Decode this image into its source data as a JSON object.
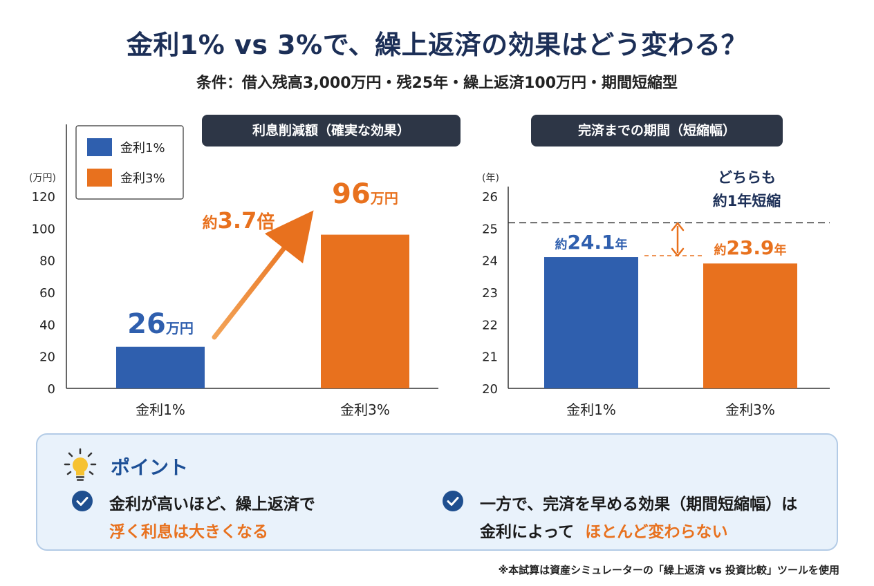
{
  "title": "金利1% vs 3%で、繰上返済の効果はどう変わる？",
  "subtitle": "条件：借入残高3,000万円・残25年・繰上返済100万円・期間短縮型",
  "colors": {
    "rate1": "#2f5fae",
    "rate3": "#e8711e",
    "header_bg": "#2d3646"
  },
  "chart_data": [
    {
      "type": "bar",
      "title": "利息削減額（確実な効果）",
      "categories": [
        "金利1%",
        "金利3%"
      ],
      "values": [
        26,
        96
      ],
      "ylabel": "(万円)",
      "ylim": [
        0,
        120
      ],
      "yticks": [
        "0",
        "20",
        "40",
        "60",
        "80",
        "100",
        "120"
      ],
      "legend": {
        "placement": "top-left",
        "entries": [
          "金利1%",
          "金利3%"
        ]
      },
      "data_labels": [
        {
          "value": "26",
          "unit": "万円"
        },
        {
          "value": "96",
          "unit": "万円"
        }
      ],
      "annotation": {
        "prefix": "約",
        "value": "3.7",
        "suffix": "倍"
      }
    },
    {
      "type": "bar",
      "title": "完済までの期間（短縮幅）",
      "categories": [
        "金利1%",
        "金利3%"
      ],
      "values": [
        24.1,
        23.9
      ],
      "reference_line": 25,
      "ylabel": "(年)",
      "ylim": [
        20,
        26
      ],
      "yticks": [
        "20",
        "21",
        "22",
        "23",
        "24",
        "25",
        "26"
      ],
      "data_labels": [
        {
          "prefix": "約",
          "value": "24.1",
          "unit": "年"
        },
        {
          "prefix": "約",
          "value": "23.9",
          "unit": "年"
        }
      ],
      "annotation": {
        "line1": "どちらも",
        "line2": "約1年短縮"
      }
    }
  ],
  "points": {
    "title": "ポイント",
    "left": {
      "line1": "金利が高いほど、繰上返済で",
      "line2": "浮く利息は大きくなる"
    },
    "right": {
      "line1": "一方で、完済を早める効果（期間短縮幅）は",
      "line2_a": "金利によって",
      "line2_b": "ほとんど変わらない"
    }
  },
  "note": "※本試算は資産シミュレーターの「繰上返済 vs 投資比較」ツールを使用"
}
